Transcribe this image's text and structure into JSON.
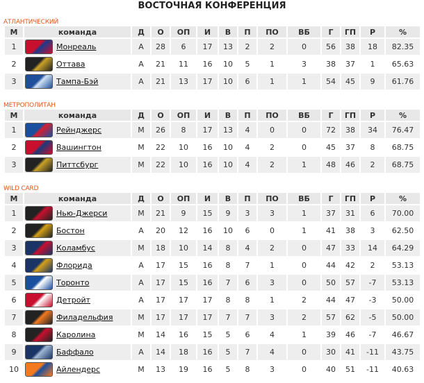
{
  "title": "ВОСТОЧНАЯ КОНФЕРЕНЦИЯ",
  "columns": [
    "М",
    "команда",
    "Д",
    "О",
    "ОП",
    "И",
    "В",
    "П",
    "ПО",
    "ВБ",
    "Г",
    "ГП",
    "Р",
    "%"
  ],
  "sections": [
    {
      "label": "АТЛАНТИЧЕСКИЙ",
      "rows": [
        [
          "1",
          "Монреаль",
          "А",
          "28",
          "6",
          "17",
          "13",
          "2",
          "2",
          "0",
          "56",
          "38",
          "18",
          "82.35"
        ],
        [
          "2",
          "Оттава",
          "А",
          "21",
          "11",
          "16",
          "10",
          "5",
          "1",
          "3",
          "38",
          "37",
          "1",
          "65.63"
        ],
        [
          "3",
          "Тампа-Бэй",
          "А",
          "21",
          "13",
          "17",
          "10",
          "6",
          "1",
          "1",
          "54",
          "45",
          "9",
          "61.76"
        ]
      ]
    },
    {
      "label": "МЕТРОПОЛИТАН",
      "rows": [
        [
          "1",
          "Рейнджерс",
          "М",
          "26",
          "8",
          "17",
          "13",
          "4",
          "0",
          "0",
          "72",
          "38",
          "34",
          "76.47"
        ],
        [
          "2",
          "Вашингтон",
          "М",
          "22",
          "10",
          "16",
          "10",
          "4",
          "2",
          "0",
          "45",
          "37",
          "8",
          "68.75"
        ],
        [
          "3",
          "Питтсбург",
          "М",
          "22",
          "10",
          "16",
          "10",
          "4",
          "2",
          "1",
          "48",
          "46",
          "2",
          "68.75"
        ]
      ]
    },
    {
      "label": "WILD CARD",
      "rows": [
        [
          "1",
          "Нью-Джерси",
          "М",
          "21",
          "9",
          "15",
          "9",
          "3",
          "3",
          "1",
          "37",
          "31",
          "6",
          "70.00"
        ],
        [
          "2",
          "Бостон",
          "А",
          "20",
          "12",
          "16",
          "10",
          "6",
          "0",
          "1",
          "41",
          "38",
          "3",
          "62.50"
        ],
        [
          "3",
          "Коламбус",
          "М",
          "18",
          "10",
          "14",
          "8",
          "4",
          "2",
          "0",
          "47",
          "33",
          "14",
          "64.29"
        ],
        [
          "4",
          "Флорида",
          "А",
          "17",
          "15",
          "16",
          "8",
          "7",
          "1",
          "0",
          "44",
          "42",
          "2",
          "53.13"
        ],
        [
          "5",
          "Торонто",
          "А",
          "17",
          "15",
          "16",
          "7",
          "6",
          "3",
          "0",
          "50",
          "57",
          "-7",
          "53.13"
        ],
        [
          "6",
          "Детройт",
          "А",
          "17",
          "17",
          "17",
          "8",
          "8",
          "1",
          "2",
          "44",
          "47",
          "-3",
          "50.00"
        ],
        [
          "7",
          "Филадельфия",
          "М",
          "17",
          "17",
          "17",
          "7",
          "7",
          "3",
          "2",
          "57",
          "62",
          "-5",
          "50.00"
        ],
        [
          "8",
          "Каролина",
          "М",
          "14",
          "16",
          "15",
          "5",
          "6",
          "4",
          "1",
          "39",
          "46",
          "-7",
          "46.67"
        ],
        [
          "9",
          "Баффало",
          "А",
          "14",
          "18",
          "16",
          "5",
          "7",
          "4",
          "0",
          "30",
          "41",
          "-11",
          "43.75"
        ],
        [
          "10",
          "Айлендерс",
          "М",
          "13",
          "19",
          "16",
          "5",
          "8",
          "3",
          "0",
          "40",
          "51",
          "-11",
          "40.63"
        ]
      ]
    }
  ],
  "logo_colors": [
    [
      "#c8102e",
      "#1d3a8a"
    ],
    [
      "#222",
      "#c9a227"
    ],
    [
      "#1f4e9a",
      "#cfe1f5"
    ],
    [
      "#1a4fa0",
      "#d5202f"
    ],
    [
      "#c8102e",
      "#1a3a7a"
    ],
    [
      "#222",
      "#c9a227"
    ],
    [
      "#222",
      "#c8102e"
    ],
    [
      "#222",
      "#d4a017"
    ],
    [
      "#1b3466",
      "#c8102e"
    ],
    [
      "#1b3466",
      "#d4a017"
    ],
    [
      "#1a4fa0",
      "#fff"
    ],
    [
      "#c8102e",
      "#fff"
    ],
    [
      "#222",
      "#f47a20"
    ],
    [
      "#222",
      "#c8102e"
    ],
    [
      "#1b3466",
      "#9fb7d4"
    ],
    [
      "#f47a20",
      "#1a4fa0"
    ]
  ]
}
